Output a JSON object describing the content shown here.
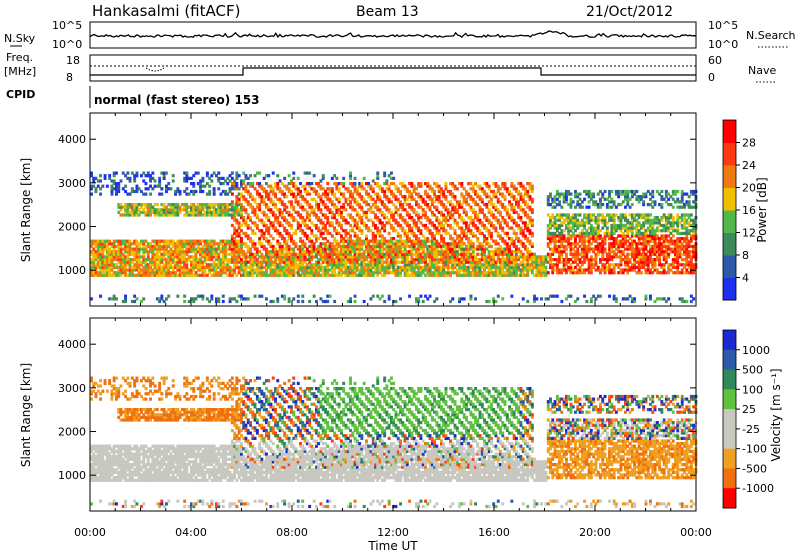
{
  "header": {
    "station": "Hankasalmi (fitACF)",
    "beam": "Beam 13",
    "date": "21/Oct/2012"
  },
  "top_panels": {
    "nsky_label": "N.Sky",
    "nsky_ticks": [
      "10^5",
      "10^0"
    ],
    "nsearch_label": "N.Search",
    "nsearch_ticks": [
      "10^5",
      "10^0"
    ],
    "freq_label": "Freq.",
    "freq_unit": "[MHz]",
    "freq_ticks": [
      "18",
      "8"
    ],
    "nave_label": "Nave",
    "nave_ticks": [
      "60",
      "0"
    ],
    "cpid_label": "CPID",
    "cpid_value": "normal (fast stereo) 153"
  },
  "chart_data": [
    {
      "type": "heatmap",
      "panel": "power",
      "ylabel": "Slant Range [km]",
      "xlabel": "",
      "x_ticks": [
        "00:00",
        "04:00",
        "08:00",
        "12:00",
        "16:00",
        "20:00",
        "00:00"
      ],
      "x_range_hours": [
        0,
        24
      ],
      "y_ticks": [
        1000,
        2000,
        3000,
        4000
      ],
      "ylim": [
        180,
        4600
      ],
      "colorbar_label": "Power [dB]",
      "colorbar_ticks": [
        4,
        8,
        12,
        16,
        20,
        24,
        28
      ],
      "colorbar_colors": [
        "#1f2ff0",
        "#2e59a8",
        "#3f8a5a",
        "#52b84a",
        "#f0c000",
        "#f07a10",
        "#ff3a10",
        "#ff0000"
      ],
      "grid": false
    },
    {
      "type": "heatmap",
      "panel": "velocity",
      "ylabel": "Slant Range [km]",
      "xlabel": "Time UT",
      "x_ticks": [
        "00:00",
        "04:00",
        "08:00",
        "12:00",
        "16:00",
        "20:00",
        "00:00"
      ],
      "x_range_hours": [
        0,
        24
      ],
      "y_ticks": [
        1000,
        2000,
        3000,
        4000
      ],
      "ylim": [
        180,
        4600
      ],
      "colorbar_label": "Velocity [m s⁻¹]",
      "colorbar_ticks": [
        1000,
        500,
        100,
        25,
        -25,
        -100,
        -500,
        -1000
      ],
      "colorbar_colors": [
        "#1a2ad0",
        "#2a5aa8",
        "#2f8a58",
        "#60c040",
        "#c8c8c0",
        "#c8c8c0",
        "#f0a020",
        "#f07010",
        "#ff0000"
      ],
      "grid": false
    }
  ],
  "colors": {
    "ground_scatter": "#c8c8c0"
  }
}
